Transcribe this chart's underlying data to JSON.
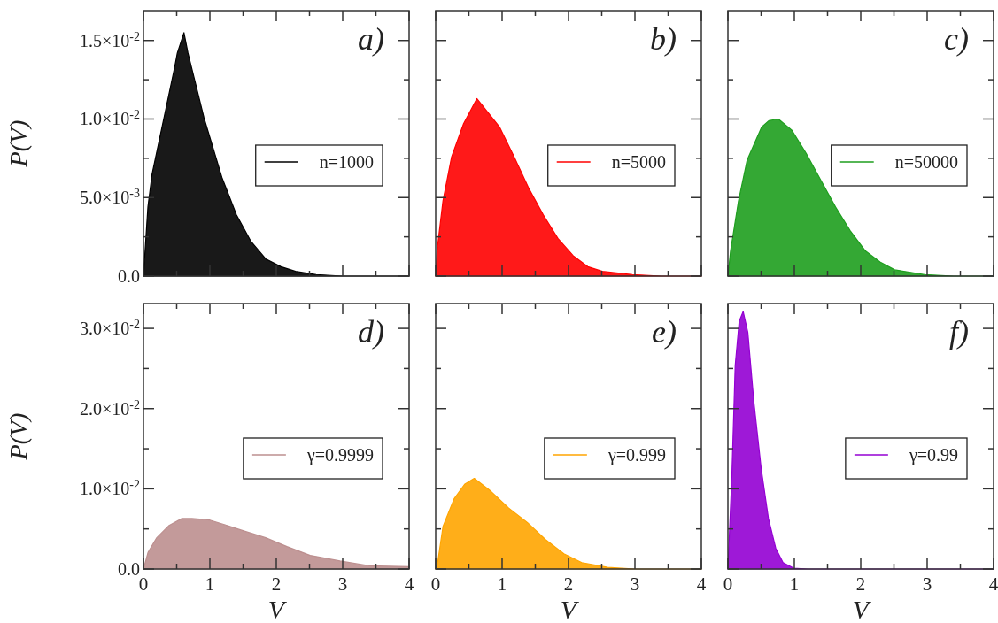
{
  "chart_data": [
    {
      "type": "area",
      "ylabel": "P(V)",
      "annotations": [
        "a)"
      ],
      "legend": "right",
      "tick_labels": "y",
      "x": [
        0,
        0.067,
        0.13,
        0.29,
        0.47,
        0.51,
        0.61,
        0.67,
        0.91,
        1.18,
        1.4,
        1.62,
        1.84,
        2.07,
        2.29,
        2.6,
        3.0,
        4.0
      ],
      "series": [
        {
          "name": "n=1000",
          "color": "#000000",
          "values": [
            0,
            0.0044,
            0.0065,
            0.0097,
            0.0133,
            0.0142,
            0.0155,
            0.0142,
            0.0101,
            0.0063,
            0.0039,
            0.0022,
            0.0011,
            0.0006,
            0.0003,
            0.0001,
            0,
            0
          ]
        }
      ],
      "xlim": [
        0,
        4
      ],
      "xticks": [
        0,
        {
          "value": 0.5,
          "label": null
        },
        1,
        {
          "value": 1.5,
          "label": null
        },
        2,
        {
          "value": 2.5,
          "label": null
        },
        3,
        {
          "value": 3.5,
          "label": null
        },
        4
      ],
      "ylim": [
        0,
        0.0169
      ],
      "yticks": [
        {
          "value": 0,
          "label": "0.0"
        },
        {
          "value": 0.0025,
          "label": null
        },
        {
          "value": 0.005,
          "label": "5.0×10$^{-3}$"
        },
        {
          "value": 0.0075,
          "label": null
        },
        {
          "value": 0.01,
          "label": "1.0×10$^{-2}$"
        },
        {
          "value": 0.0125,
          "label": null
        },
        {
          "value": 0.015,
          "label": "1.5×10$^{-2}$"
        }
      ]
    },
    {
      "type": "area",
      "annotations": [
        "b)"
      ],
      "legend": "right",
      "tick_labels": false,
      "x": [
        0,
        0.02,
        0.11,
        0.24,
        0.42,
        0.62,
        0.96,
        1.18,
        1.4,
        1.62,
        1.84,
        2.07,
        2.29,
        2.51,
        2.96,
        3.4,
        4.0
      ],
      "series": [
        {
          "name": "n=5000",
          "color": "#ff0000",
          "values": [
            0,
            0.0016,
            0.0048,
            0.0076,
            0.0097,
            0.0113,
            0.0095,
            0.0076,
            0.0056,
            0.0039,
            0.0024,
            0.0013,
            0.0006,
            0.0003,
            0.0001,
            0,
            0
          ]
        }
      ],
      "xlim": [
        0,
        4
      ],
      "xticks": [
        0,
        {
          "value": 0.5,
          "label": null
        },
        1,
        {
          "value": 1.5,
          "label": null
        },
        2,
        {
          "value": 2.5,
          "label": null
        },
        3,
        {
          "value": 3.5,
          "label": null
        },
        4
      ],
      "ylim": [
        0,
        0.0169
      ],
      "yticks": [
        {
          "value": 0,
          "label": null
        },
        {
          "value": 0.0025,
          "label": null
        },
        {
          "value": 0.005,
          "label": null
        },
        {
          "value": 0.0075,
          "label": null
        },
        {
          "value": 0.01,
          "label": null
        },
        {
          "value": 0.0125,
          "label": null
        },
        {
          "value": 0.015,
          "label": null
        }
      ]
    },
    {
      "type": "area",
      "annotations": [
        "c)"
      ],
      "legend": "right",
      "tick_labels": false,
      "x": [
        0,
        0.04,
        0.16,
        0.29,
        0.51,
        0.62,
        0.76,
        0.96,
        1.18,
        1.4,
        1.62,
        1.84,
        2.07,
        2.29,
        2.51,
        2.96,
        3.4,
        4.0
      ],
      "series": [
        {
          "name": "n=50000",
          "color": "#1e9e1e",
          "values": [
            0,
            0.0016,
            0.0048,
            0.0074,
            0.0095,
            0.0099,
            0.01,
            0.0093,
            0.0078,
            0.0061,
            0.0044,
            0.0029,
            0.0016,
            0.0009,
            0.0004,
            0.0001,
            0,
            0
          ]
        }
      ],
      "xlim": [
        0,
        4
      ],
      "xticks": [
        0,
        {
          "value": 0.5,
          "label": null
        },
        1,
        {
          "value": 1.5,
          "label": null
        },
        2,
        {
          "value": 2.5,
          "label": null
        },
        3,
        {
          "value": 3.5,
          "label": null
        },
        4
      ],
      "ylim": [
        0,
        0.0169
      ],
      "yticks": [
        {
          "value": 0,
          "label": null
        },
        {
          "value": 0.0025,
          "label": null
        },
        {
          "value": 0.005,
          "label": null
        },
        {
          "value": 0.0075,
          "label": null
        },
        {
          "value": 0.01,
          "label": null
        },
        {
          "value": 0.0125,
          "label": null
        },
        {
          "value": 0.015,
          "label": null
        }
      ]
    },
    {
      "type": "area",
      "ylabel": "P(V)",
      "xlabel": "V",
      "annotations": [
        "d)"
      ],
      "legend": "right",
      "x": [
        0,
        0.07,
        0.2,
        0.38,
        0.58,
        0.73,
        1.0,
        1.27,
        1.53,
        1.84,
        2.16,
        2.51,
        2.96,
        3.4,
        4.0
      ],
      "series": [
        {
          "name": "γ=0.9999",
          "color": "#bc8f8f",
          "values": [
            0,
            0.0021,
            0.0039,
            0.0054,
            0.0063,
            0.0063,
            0.0061,
            0.0054,
            0.0047,
            0.0039,
            0.0028,
            0.0017,
            0.001,
            0.0004,
            0.0003
          ]
        }
      ],
      "xlim": [
        0,
        4
      ],
      "xticks": [
        0,
        {
          "value": 0.5,
          "label": null
        },
        1,
        {
          "value": 1.5,
          "label": null
        },
        2,
        {
          "value": 2.5,
          "label": null
        },
        3,
        {
          "value": 3.5,
          "label": null
        },
        4
      ],
      "ylim": [
        0,
        0.0331
      ],
      "yticks": [
        {
          "value": 0,
          "label": "0.0"
        },
        {
          "value": 0.005,
          "label": null
        },
        {
          "value": 0.01,
          "label": "1.0×10$^{-2}$"
        },
        {
          "value": 0.015,
          "label": null
        },
        {
          "value": 0.02,
          "label": "2.0×10$^{-2}$"
        },
        {
          "value": 0.025,
          "label": null
        },
        {
          "value": 0.03,
          "label": "3.0×10$^{-2}$"
        }
      ]
    },
    {
      "type": "area",
      "xlabel": "V",
      "annotations": [
        "e)"
      ],
      "legend": "right",
      "tick_labels": "x",
      "x": [
        0,
        0.03,
        0.11,
        0.28,
        0.44,
        0.58,
        0.83,
        1.1,
        1.38,
        1.65,
        1.93,
        2.2,
        2.59,
        3.0,
        4.0
      ],
      "series": [
        {
          "name": "γ=0.999",
          "color": "#ffa500",
          "values": [
            0,
            0.0008,
            0.0053,
            0.0088,
            0.0106,
            0.0113,
            0.0097,
            0.0076,
            0.0058,
            0.0037,
            0.0019,
            0.0008,
            0.0002,
            0,
            0
          ]
        }
      ],
      "xlim": [
        0,
        4
      ],
      "xticks": [
        0,
        {
          "value": 0.5,
          "label": null
        },
        1,
        {
          "value": 1.5,
          "label": null
        },
        2,
        {
          "value": 2.5,
          "label": null
        },
        3,
        {
          "value": 3.5,
          "label": null
        },
        4
      ],
      "ylim": [
        0,
        0.0331
      ],
      "yticks": [
        {
          "value": 0,
          "label": null
        },
        {
          "value": 0.005,
          "label": null
        },
        {
          "value": 0.01,
          "label": null
        },
        {
          "value": 0.015,
          "label": null
        },
        {
          "value": 0.02,
          "label": null
        },
        {
          "value": 0.025,
          "label": null
        },
        {
          "value": 0.03,
          "label": null
        }
      ]
    },
    {
      "type": "area",
      "xlabel": "V",
      "annotations": [
        "f)"
      ],
      "legend": "right",
      "tick_labels": "x",
      "x": [
        0,
        0.06,
        0.11,
        0.17,
        0.23,
        0.3,
        0.39,
        0.5,
        0.61,
        0.72,
        0.83,
        0.99,
        1.2,
        4.0
      ],
      "series": [
        {
          "name": "γ=0.99",
          "color": "#9400d3",
          "values": [
            0,
            0.0117,
            0.0254,
            0.0309,
            0.0321,
            0.0295,
            0.0209,
            0.0126,
            0.0063,
            0.0026,
            0.0008,
            0.0001,
            0,
            0
          ]
        }
      ],
      "xlim": [
        0,
        4
      ],
      "xticks": [
        0,
        {
          "value": 0.5,
          "label": null
        },
        1,
        {
          "value": 1.5,
          "label": null
        },
        2,
        {
          "value": 2.5,
          "label": null
        },
        3,
        {
          "value": 3.5,
          "label": null
        },
        4
      ],
      "ylim": [
        0,
        0.0331
      ],
      "yticks": [
        {
          "value": 0,
          "label": null
        },
        {
          "value": 0.005,
          "label": null
        },
        {
          "value": 0.01,
          "label": null
        },
        {
          "value": 0.015,
          "label": null
        },
        {
          "value": 0.02,
          "label": null
        },
        {
          "value": 0.025,
          "label": null
        },
        {
          "value": 0.03,
          "label": null
        }
      ]
    }
  ]
}
